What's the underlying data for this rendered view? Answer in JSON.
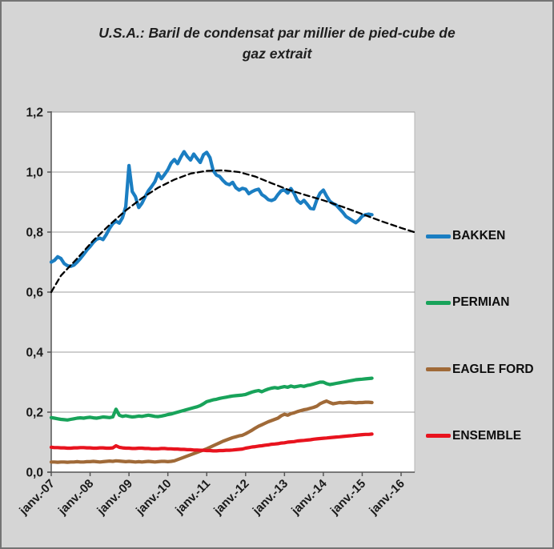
{
  "header": {
    "title_line1": "U.S.A.: Baril de condensat par millier de pied-cube de",
    "title_line2": "gaz extrait"
  },
  "chart_data": {
    "type": "line",
    "title": "U.S.A.: Baril de condensat par millier de pied-cube de gaz extrait",
    "xlabel": "",
    "ylabel": "",
    "x_unit": "months since janv.-07, monthly data",
    "xlim": [
      0,
      112.2
    ],
    "ylim": [
      0,
      1.2
    ],
    "grid": "horizontal",
    "legend_position": "right",
    "background": "#d5d5d5",
    "plot_background": "#ffffff",
    "y_tick_labels": [
      "0,0",
      "0,2",
      "0,4",
      "0,6",
      "0,8",
      "1,0",
      "1,2"
    ],
    "y_tick_values": [
      0,
      0.2,
      0.4,
      0.6,
      0.8,
      1.0,
      1.2
    ],
    "x_tick_labels": [
      "janv.-07",
      "janv.-08",
      "janv.-09",
      "janv.-10",
      "janv.-11",
      "janv.-12",
      "janv.-13",
      "janv.-14",
      "janv.-15",
      "janv.-16"
    ],
    "x_tick_values": [
      0,
      12,
      24,
      36,
      48,
      60,
      72,
      84,
      96,
      108
    ],
    "series": [
      {
        "name": "BAKKEN",
        "color": "#1b7ec2",
        "dash": false,
        "width": 4.2,
        "legend": true,
        "values": [
          0.7,
          0.706,
          0.718,
          0.712,
          0.695,
          0.688,
          0.686,
          0.69,
          0.7,
          0.712,
          0.726,
          0.74,
          0.752,
          0.766,
          0.776,
          0.78,
          0.775,
          0.792,
          0.812,
          0.828,
          0.836,
          0.83,
          0.848,
          0.885,
          1.022,
          0.935,
          0.918,
          0.882,
          0.896,
          0.918,
          0.938,
          0.952,
          0.968,
          0.996,
          0.978,
          0.992,
          1.008,
          1.03,
          1.042,
          1.028,
          1.05,
          1.068,
          1.052,
          1.04,
          1.06,
          1.045,
          1.032,
          1.058,
          1.066,
          1.048,
          1.005,
          0.99,
          0.985,
          0.972,
          0.962,
          0.958,
          0.966,
          0.948,
          0.94,
          0.946,
          0.943,
          0.928,
          0.935,
          0.94,
          0.943,
          0.925,
          0.918,
          0.908,
          0.905,
          0.91,
          0.925,
          0.938,
          0.94,
          0.93,
          0.945,
          0.928,
          0.905,
          0.896,
          0.906,
          0.893,
          0.879,
          0.877,
          0.908,
          0.93,
          0.94,
          0.92,
          0.903,
          0.895,
          0.89,
          0.878,
          0.866,
          0.852,
          0.845,
          0.838,
          0.831,
          0.84,
          0.853,
          0.858,
          0.86,
          0.858
        ]
      },
      {
        "name": "PERMIAN",
        "color": "#18a35a",
        "dash": false,
        "width": 4.2,
        "legend": true,
        "values": [
          0.182,
          0.18,
          0.178,
          0.176,
          0.175,
          0.174,
          0.176,
          0.178,
          0.18,
          0.181,
          0.18,
          0.182,
          0.183,
          0.181,
          0.18,
          0.182,
          0.184,
          0.183,
          0.182,
          0.184,
          0.21,
          0.19,
          0.186,
          0.188,
          0.186,
          0.184,
          0.185,
          0.187,
          0.186,
          0.188,
          0.19,
          0.188,
          0.186,
          0.185,
          0.187,
          0.189,
          0.192,
          0.194,
          0.197,
          0.2,
          0.203,
          0.206,
          0.209,
          0.212,
          0.215,
          0.218,
          0.222,
          0.228,
          0.235,
          0.238,
          0.241,
          0.243,
          0.246,
          0.248,
          0.25,
          0.252,
          0.254,
          0.255,
          0.256,
          0.257,
          0.259,
          0.263,
          0.267,
          0.27,
          0.272,
          0.268,
          0.273,
          0.277,
          0.28,
          0.282,
          0.28,
          0.283,
          0.285,
          0.283,
          0.287,
          0.284,
          0.286,
          0.288,
          0.286,
          0.289,
          0.291,
          0.294,
          0.297,
          0.3,
          0.3,
          0.295,
          0.292,
          0.294,
          0.296,
          0.298,
          0.3,
          0.302,
          0.304,
          0.306,
          0.308,
          0.309,
          0.31,
          0.311,
          0.312,
          0.313
        ]
      },
      {
        "name": "EAGLE FORD",
        "color": "#a06a38",
        "dash": false,
        "width": 4.2,
        "legend": true,
        "values": [
          0.034,
          0.034,
          0.033,
          0.034,
          0.034,
          0.033,
          0.034,
          0.034,
          0.035,
          0.034,
          0.034,
          0.035,
          0.035,
          0.036,
          0.035,
          0.034,
          0.035,
          0.036,
          0.037,
          0.036,
          0.038,
          0.037,
          0.036,
          0.035,
          0.036,
          0.035,
          0.034,
          0.035,
          0.034,
          0.035,
          0.036,
          0.035,
          0.034,
          0.035,
          0.036,
          0.036,
          0.035,
          0.036,
          0.038,
          0.042,
          0.046,
          0.05,
          0.054,
          0.058,
          0.062,
          0.066,
          0.07,
          0.074,
          0.078,
          0.083,
          0.088,
          0.093,
          0.098,
          0.103,
          0.107,
          0.111,
          0.115,
          0.118,
          0.121,
          0.123,
          0.128,
          0.134,
          0.14,
          0.147,
          0.153,
          0.158,
          0.163,
          0.168,
          0.172,
          0.176,
          0.18,
          0.188,
          0.193,
          0.19,
          0.195,
          0.198,
          0.202,
          0.205,
          0.208,
          0.21,
          0.213,
          0.216,
          0.22,
          0.228,
          0.233,
          0.237,
          0.232,
          0.228,
          0.23,
          0.232,
          0.231,
          0.232,
          0.233,
          0.232,
          0.231,
          0.232,
          0.232,
          0.233,
          0.233,
          0.232
        ]
      },
      {
        "name": "ENSEMBLE",
        "color": "#e8131e",
        "dash": false,
        "width": 4.2,
        "legend": true,
        "values": [
          0.083,
          0.082,
          0.082,
          0.081,
          0.081,
          0.08,
          0.08,
          0.081,
          0.081,
          0.082,
          0.082,
          0.081,
          0.081,
          0.08,
          0.08,
          0.081,
          0.081,
          0.08,
          0.08,
          0.081,
          0.088,
          0.083,
          0.081,
          0.08,
          0.08,
          0.079,
          0.079,
          0.08,
          0.08,
          0.079,
          0.079,
          0.078,
          0.078,
          0.078,
          0.079,
          0.079,
          0.078,
          0.078,
          0.077,
          0.077,
          0.076,
          0.076,
          0.075,
          0.075,
          0.074,
          0.074,
          0.073,
          0.073,
          0.072,
          0.072,
          0.071,
          0.071,
          0.072,
          0.072,
          0.073,
          0.073,
          0.074,
          0.075,
          0.076,
          0.077,
          0.08,
          0.082,
          0.084,
          0.085,
          0.087,
          0.088,
          0.09,
          0.091,
          0.093,
          0.094,
          0.095,
          0.097,
          0.098,
          0.1,
          0.101,
          0.102,
          0.104,
          0.105,
          0.106,
          0.107,
          0.108,
          0.11,
          0.111,
          0.112,
          0.113,
          0.114,
          0.115,
          0.116,
          0.117,
          0.118,
          0.119,
          0.12,
          0.121,
          0.122,
          0.123,
          0.124,
          0.125,
          0.126,
          0.126,
          0.127
        ]
      },
      {
        "name": "trend-dashed",
        "color": "#000000",
        "dash": true,
        "width": 2.3,
        "legend": false,
        "x": [
          0,
          3,
          8,
          13,
          18,
          23,
          28,
          33,
          38,
          43,
          48,
          53,
          58,
          63,
          68,
          73,
          78,
          84,
          90,
          96,
          102,
          108,
          112
        ],
        "values": [
          0.6,
          0.655,
          0.712,
          0.772,
          0.824,
          0.872,
          0.913,
          0.948,
          0.975,
          0.995,
          1.004,
          1.006,
          1.0,
          0.985,
          0.963,
          0.942,
          0.925,
          0.906,
          0.884,
          0.86,
          0.836,
          0.814,
          0.8
        ]
      }
    ]
  }
}
